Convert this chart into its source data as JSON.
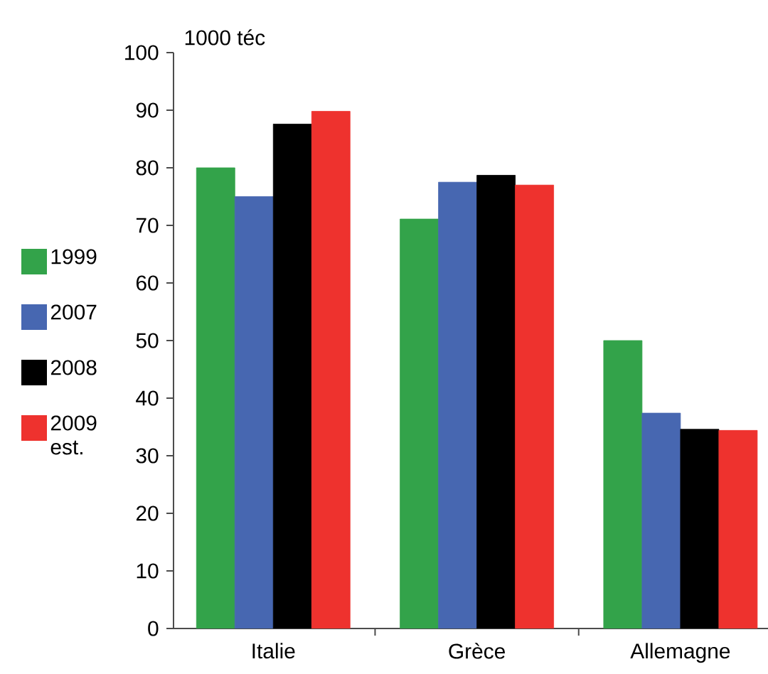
{
  "chart_data": {
    "type": "bar",
    "ylabel": "1000 téc",
    "categories": [
      "Italie",
      "Grèce",
      "Allemagne"
    ],
    "series": [
      {
        "name": "1999",
        "color": "#33a34a",
        "values": [
          80.0,
          71.1,
          50.0
        ]
      },
      {
        "name": "2007",
        "color": "#4767b1",
        "values": [
          75.0,
          77.5,
          37.4
        ]
      },
      {
        "name": "2008",
        "color": "#000000",
        "values": [
          87.6,
          78.7,
          34.6
        ]
      },
      {
        "name": "2009 est.",
        "color": "#ee322e",
        "values": [
          89.8,
          77.0,
          34.4
        ]
      }
    ],
    "ylim": [
      0,
      100
    ],
    "yticks": [
      0,
      10,
      20,
      30,
      40,
      50,
      60,
      70,
      80,
      90,
      100
    ],
    "legend": "left",
    "grid": false
  }
}
